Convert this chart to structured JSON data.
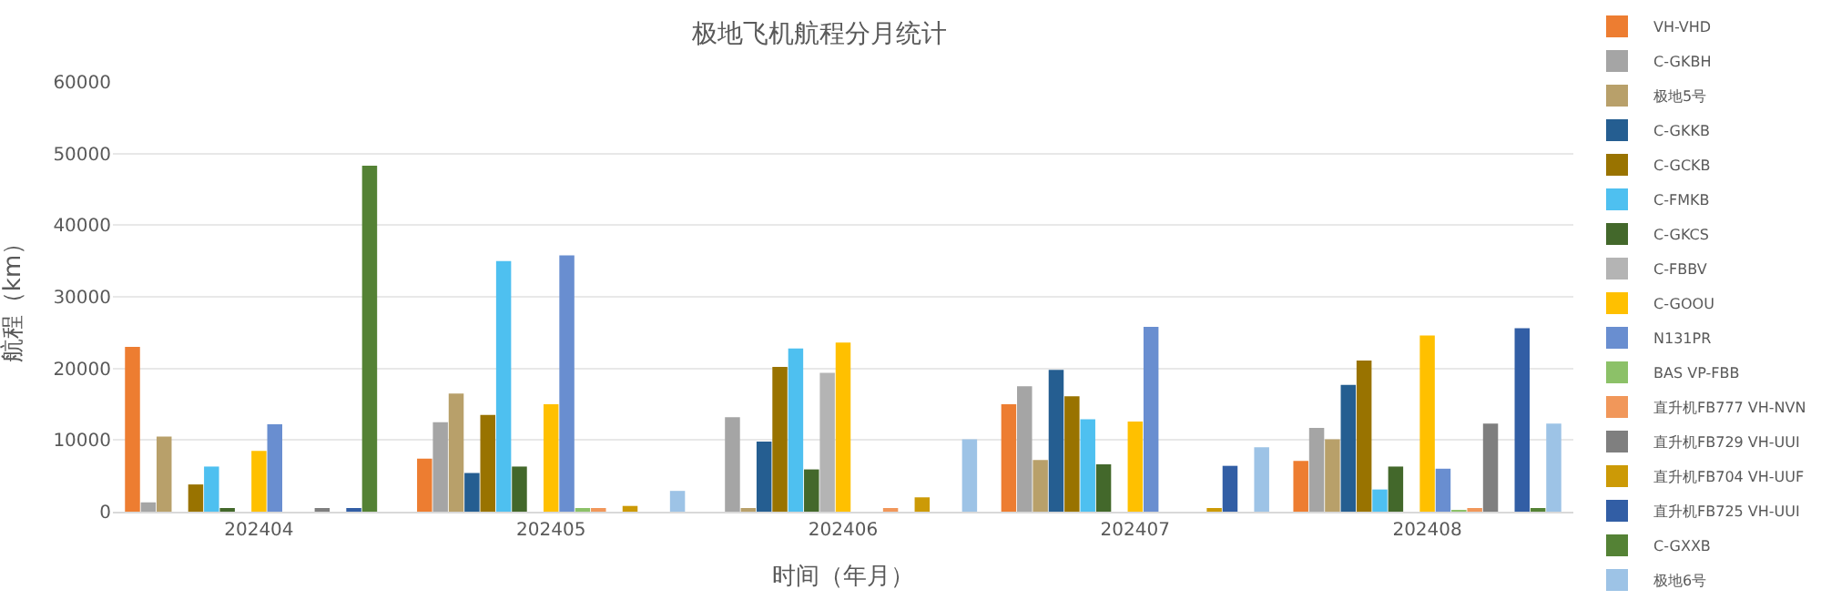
{
  "chart_data": {
    "type": "bar",
    "title": "极地飞机航程分月统计",
    "xlabel": "时间（年月）",
    "ylabel": "航程（km）",
    "categories": [
      "202404",
      "202405",
      "202406",
      "202407",
      "202408"
    ],
    "ylim": [
      0,
      60000
    ],
    "yticks": [
      0,
      10000,
      20000,
      30000,
      40000,
      50000,
      60000
    ],
    "grid": "y",
    "legend": "right",
    "series": [
      {
        "name": "VH-VHD",
        "color": "#ed7d31",
        "values": [
          23000,
          7400,
          null,
          15000,
          7100
        ]
      },
      {
        "name": "C-GKBH",
        "color": "#a5a5a5",
        "values": [
          1300,
          12500,
          13200,
          17500,
          11700
        ]
      },
      {
        "name": "极地5号",
        "color": "#b8a06a",
        "values": [
          10500,
          16500,
          400,
          7200,
          10100
        ]
      },
      {
        "name": "C-GKKB",
        "color": "#255e91",
        "values": [
          null,
          5400,
          9800,
          19800,
          17700
        ]
      },
      {
        "name": "C-GCKB",
        "color": "#997300",
        "values": [
          3800,
          13500,
          20200,
          16100,
          21100
        ]
      },
      {
        "name": "C-FMKB",
        "color": "#4ec0f0",
        "values": [
          6300,
          35000,
          22800,
          12900,
          3100
        ]
      },
      {
        "name": "C-GKCS",
        "color": "#43682b",
        "values": [
          300,
          6300,
          5900,
          6600,
          6300
        ]
      },
      {
        "name": "C-FBBV",
        "color": "#b4b4b4",
        "values": [
          null,
          null,
          19400,
          null,
          null
        ]
      },
      {
        "name": "C-GOOU",
        "color": "#ffc000",
        "values": [
          8500,
          15000,
          23600,
          12600,
          24600
        ]
      },
      {
        "name": "N131PR",
        "color": "#698ed0",
        "values": [
          12200,
          35800,
          null,
          25800,
          6000
        ]
      },
      {
        "name": "BAS VP-FBB",
        "color": "#8cc168",
        "values": [
          null,
          500,
          null,
          null,
          200
        ]
      },
      {
        "name": "直升机FB777 VH-NVN",
        "color": "#f1975a",
        "values": [
          null,
          300,
          300,
          null,
          300
        ]
      },
      {
        "name": "直升机FB729 VH-UUI",
        "color": "#7f7f7f",
        "values": [
          300,
          null,
          null,
          null,
          12300
        ]
      },
      {
        "name": "直升机FB704 VH-UUF",
        "color": "#cc9a06",
        "values": [
          null,
          800,
          2000,
          500,
          null
        ]
      },
      {
        "name": "直升机FB725 VH-UUI",
        "color": "#325ea5",
        "values": [
          300,
          null,
          null,
          6400,
          25600
        ]
      },
      {
        "name": "C-GXXB",
        "color": "#548235",
        "values": [
          48300,
          null,
          null,
          null,
          300
        ]
      },
      {
        "name": "极地6号",
        "color": "#9dc3e6",
        "values": [
          null,
          2900,
          10100,
          9000,
          12300
        ]
      }
    ]
  }
}
